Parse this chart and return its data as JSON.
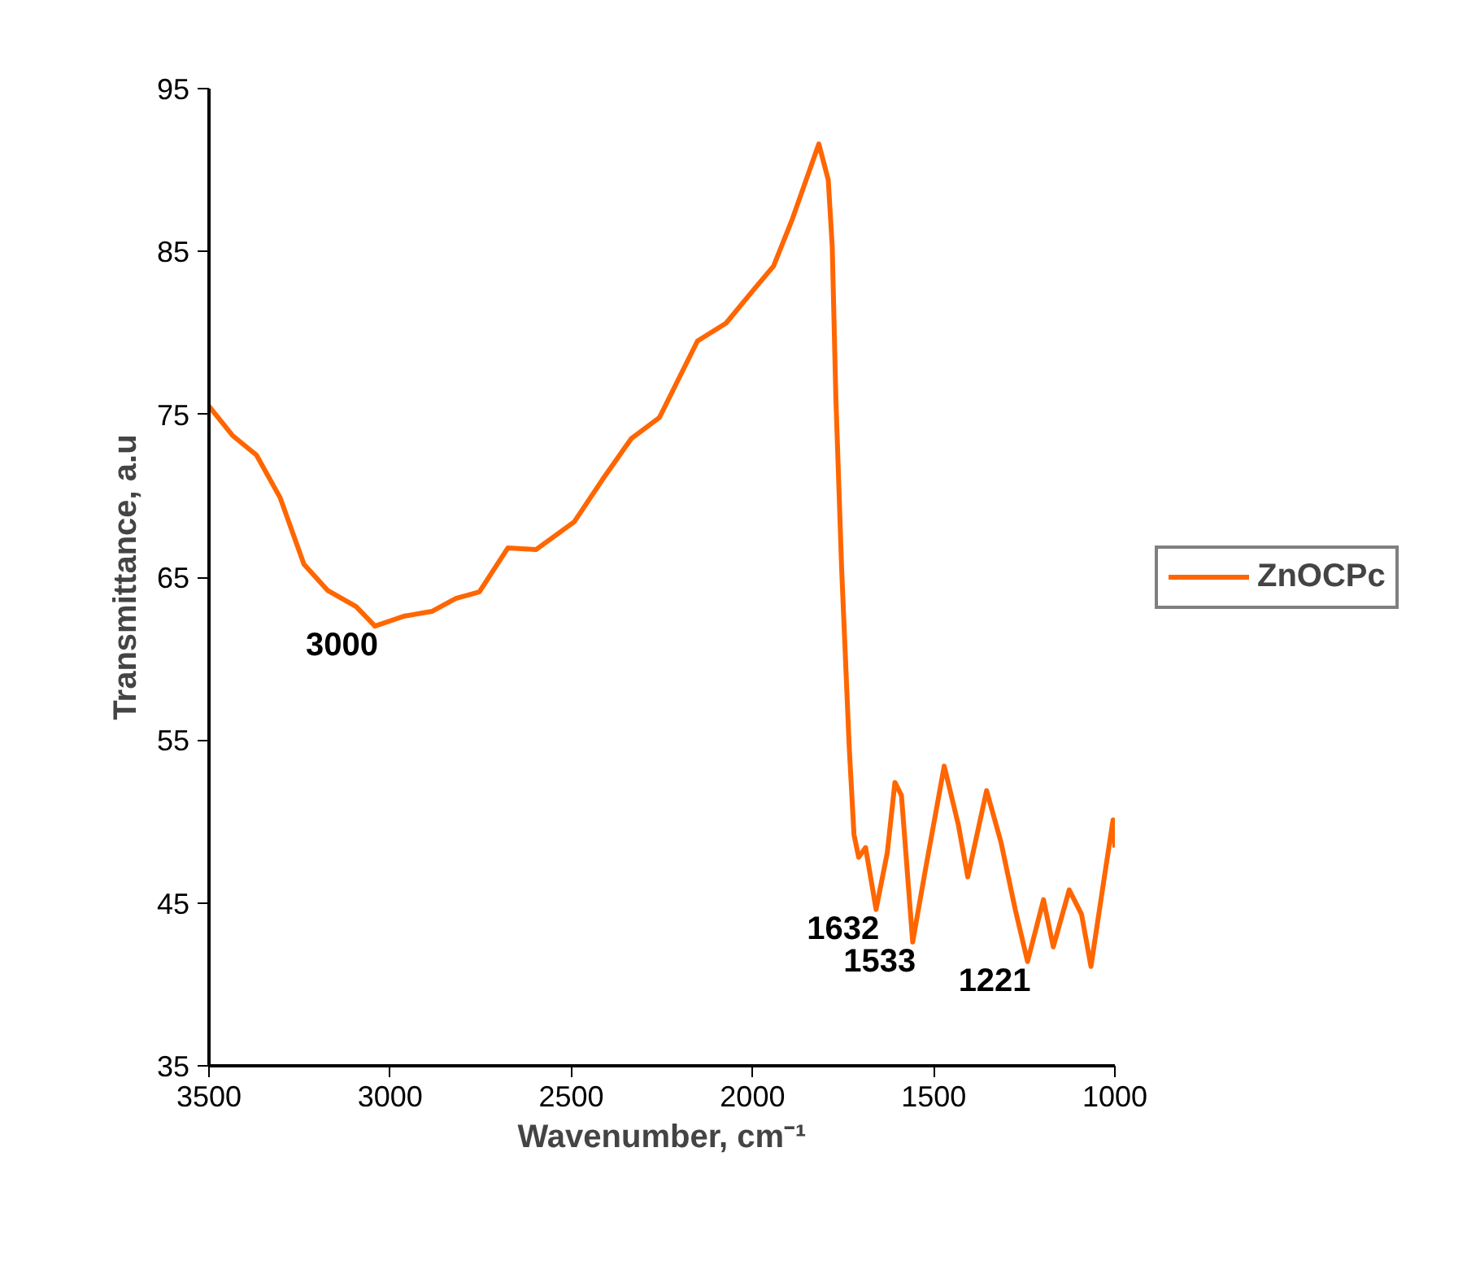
{
  "chart_data": {
    "type": "line",
    "xlabel": "Wavenumber, cm⁻¹",
    "ylabel": "Transmittance, a.u",
    "x": [
      3500,
      3435,
      3369,
      3304,
      3238,
      3173,
      3094,
      3042,
      2963,
      2885,
      2819,
      2754,
      2675,
      2597,
      2492,
      2414,
      2335,
      2257,
      2152,
      2073,
      1995,
      1942,
      1890,
      1817,
      1791,
      1780,
      1770,
      1754,
      1733,
      1720,
      1707,
      1688,
      1659,
      1628,
      1607,
      1589,
      1558,
      1524,
      1471,
      1432,
      1406,
      1354,
      1314,
      1275,
      1241,
      1197,
      1170,
      1126,
      1092,
      1066,
      1031,
      1005,
      1000
    ],
    "series": [
      {
        "name": "ZnOCPc",
        "color": "#ff6600",
        "values": [
          75.5,
          73.7,
          72.5,
          69.9,
          65.8,
          64.2,
          63.2,
          62.0,
          62.6,
          62.9,
          63.7,
          64.1,
          66.8,
          66.7,
          68.4,
          71.0,
          73.5,
          74.8,
          79.5,
          80.6,
          82.7,
          84.1,
          87.0,
          91.6,
          89.4,
          85.3,
          76.0,
          65.5,
          54.5,
          49.2,
          47.8,
          48.4,
          44.6,
          48.1,
          52.4,
          51.6,
          42.6,
          46.9,
          53.4,
          49.8,
          46.6,
          51.9,
          48.7,
          44.6,
          41.4,
          45.2,
          42.3,
          45.8,
          44.3,
          41.1,
          46.3,
          50.1,
          48.4
        ]
      }
    ],
    "xlim": [
      3500,
      1000
    ],
    "xticks": [
      3500,
      3000,
      2500,
      2000,
      1500,
      1000
    ],
    "ylim": [
      35,
      95
    ],
    "yticks": [
      35,
      45,
      55,
      65,
      75,
      85,
      95
    ],
    "annotations": [
      {
        "text": "3000",
        "x": 3042,
        "y": 62.0
      },
      {
        "text": "1632",
        "x": 1659,
        "y": 44.6
      },
      {
        "text": "1533",
        "x": 1558,
        "y": 42.6
      },
      {
        "text": "1221",
        "x": 1241,
        "y": 41.4
      }
    ],
    "grid": false,
    "legend": "right",
    "marker": "none",
    "line_style": "solid"
  }
}
